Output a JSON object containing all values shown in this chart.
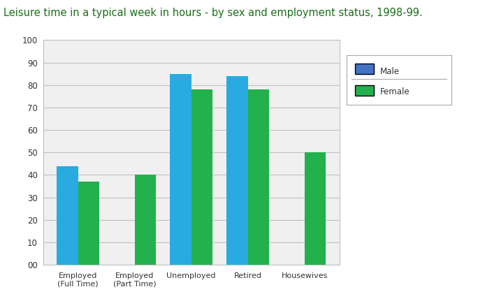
{
  "title": "Leisure time in a typical week in hours - by sex and employment status, 1998-99.",
  "title_color": "#1a6e1a",
  "title_fontsize": 10.5,
  "categories": [
    "Employed\n(Full Time)",
    "Employed\n(Part Time)",
    "Unemployed",
    "Retired",
    "Housewives"
  ],
  "male_values": [
    44,
    null,
    85,
    84,
    null
  ],
  "female_values": [
    37,
    40,
    78,
    78,
    50
  ],
  "male_color": "#29ABE2",
  "female_color": "#22B14C",
  "legend_male_color": "#4472C4",
  "legend_female_color": "#22B14C",
  "ylim": [
    0,
    100
  ],
  "yticks": [
    0,
    10,
    20,
    30,
    40,
    50,
    60,
    70,
    80,
    90,
    100
  ],
  "ytick_labels": [
    "00",
    "10",
    "20",
    "30",
    "40",
    "50",
    "60",
    "70",
    "80",
    "90",
    "100"
  ],
  "bar_width": 0.38,
  "chart_background": "#ffffff",
  "outer_background": "#ffffff",
  "plot_area_background": "#f0f0f0",
  "grid_color": "#c0c0c0",
  "legend_labels": [
    "Male",
    "Female"
  ],
  "legend_border_color": "#aaaaaa"
}
